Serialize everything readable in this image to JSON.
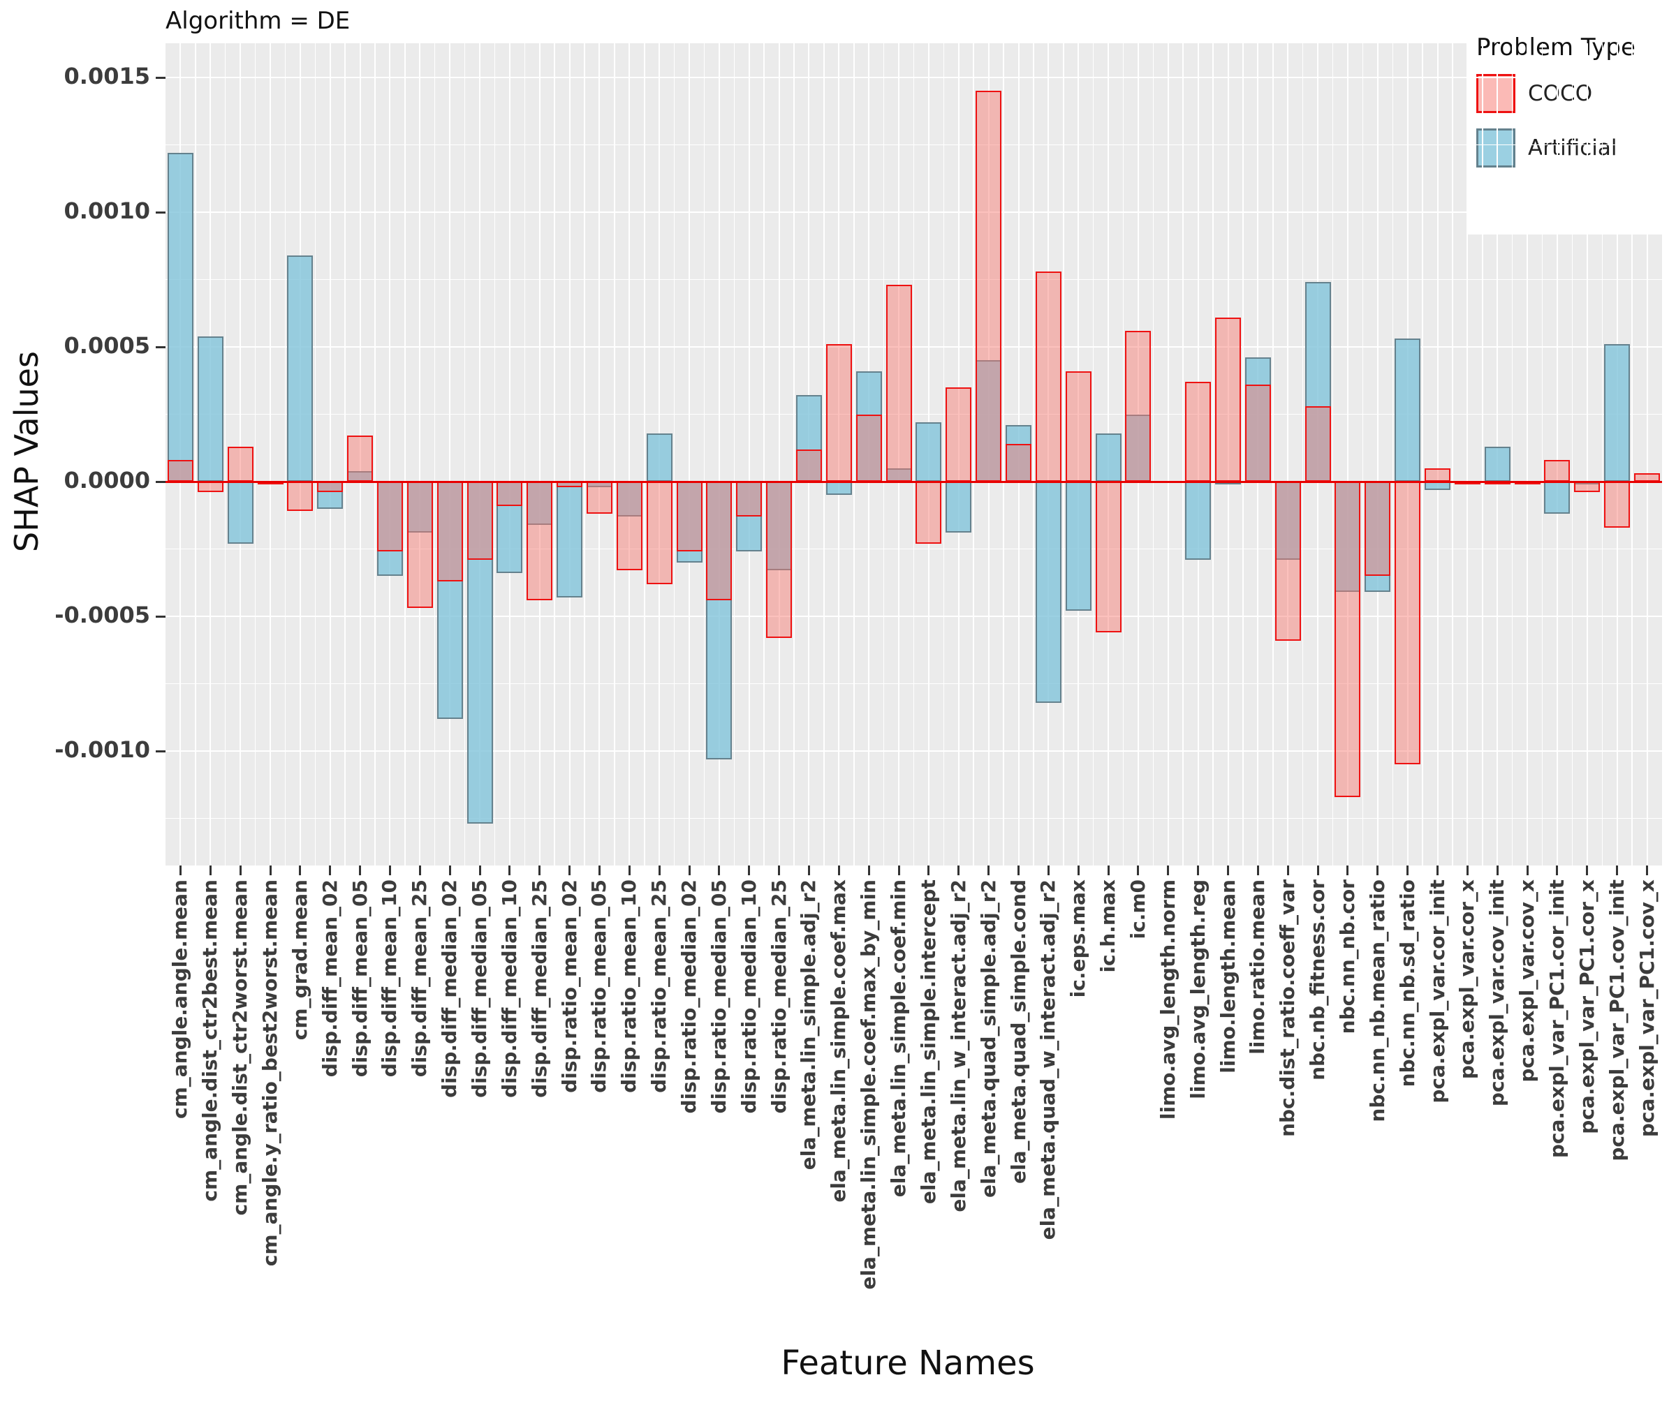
{
  "title": "Algorithm = DE",
  "chart_data": {
    "type": "bar",
    "title": "Algorithm = DE",
    "xlabel": "Feature Names",
    "ylabel": "SHAP Values",
    "ylim": [
      -0.00138,
      0.00163
    ],
    "grid": true,
    "legend_title": "Problem Type",
    "legend_position": "top-right",
    "zero_line_color": "#E80000",
    "panel_background": "#EBEBEB",
    "ytick_values": [
      0.0015,
      0.001,
      0.0005,
      0.0,
      -0.0005,
      -0.001
    ],
    "ytick_labels": [
      "0.0015",
      "0.0010",
      "0.0005",
      "0.0000",
      "-0.0005",
      "-0.0010"
    ],
    "minor_ytick_values": [
      0.00125,
      0.00075,
      0.00025,
      -0.00025,
      -0.00075,
      -0.00125
    ],
    "categories": [
      "cm_angle.angle.mean",
      "cm_angle.dist_ctr2best.mean",
      "cm_angle.dist_ctr2worst.mean",
      "cm_angle.y_ratio_best2worst.mean",
      "cm_grad.mean",
      "disp.diff_mean_02",
      "disp.diff_mean_05",
      "disp.diff_mean_10",
      "disp.diff_mean_25",
      "disp.diff_median_02",
      "disp.diff_median_05",
      "disp.diff_median_10",
      "disp.diff_median_25",
      "disp.ratio_mean_02",
      "disp.ratio_mean_05",
      "disp.ratio_mean_10",
      "disp.ratio_mean_25",
      "disp.ratio_median_02",
      "disp.ratio_median_05",
      "disp.ratio_median_10",
      "disp.ratio_median_25",
      "ela_meta.lin_simple.adj_r2",
      "ela_meta.lin_simple.coef.max",
      "ela_meta.lin_simple.coef.max_by_min",
      "ela_meta.lin_simple.coef.min",
      "ela_meta.lin_simple.intercept",
      "ela_meta.lin_w_interact.adj_r2",
      "ela_meta.quad_simple.adj_r2",
      "ela_meta.quad_simple.cond",
      "ela_meta.quad_w_interact.adj_r2",
      "ic.eps.max",
      "ic.h.max",
      "ic.m0",
      "limo.avg_length.norm",
      "limo.avg_length.reg",
      "limo.length.mean",
      "limo.ratio.mean",
      "nbc.dist_ratio.coeff_var",
      "nbc.nb_fitness.cor",
      "nbc.nn_nb.cor",
      "nbc.nn_nb.mean_ratio",
      "nbc.nn_nb.sd_ratio",
      "pca.expl_var.cor_init",
      "pca.expl_var.cor_x",
      "pca.expl_var.cov_init",
      "pca.expl_var.cov_x",
      "pca.expl_var_PC1.cor_init",
      "pca.expl_var_PC1.cor_x",
      "pca.expl_var_PC1.cov_init",
      "pca.expl_var_PC1.cov_x"
    ],
    "series": [
      {
        "name": "Artificial",
        "color_fill": "rgba(130,196,219,0.80)",
        "color_border": "#64818D",
        "values": [
          0.00122,
          0.00054,
          -0.00023,
          0.0,
          0.00084,
          -0.0001,
          4e-05,
          -0.00035,
          -0.00019,
          -0.00088,
          -0.00127,
          -0.00034,
          -0.00016,
          -0.00043,
          -2e-05,
          -0.00013,
          0.00018,
          -0.0003,
          -0.00103,
          -0.00026,
          -0.00033,
          0.00032,
          -5e-05,
          0.00041,
          5e-05,
          0.00022,
          -0.00019,
          0.00045,
          0.00021,
          -0.00082,
          -0.00048,
          0.00018,
          0.00025,
          0.0,
          -0.00029,
          -1e-05,
          0.00046,
          -0.00029,
          0.00074,
          -0.00041,
          -0.00041,
          0.00053,
          -3e-05,
          0.0,
          0.00013,
          0.0,
          -0.00012,
          -1e-05,
          0.00051,
          0.0
        ]
      },
      {
        "name": "COCO",
        "color_fill": "rgba(248,118,109,0.45)",
        "color_border": "#EE1111",
        "values": [
          8e-05,
          -4e-05,
          0.00013,
          -1e-05,
          -0.00011,
          -4e-05,
          0.00017,
          -0.00026,
          -0.00047,
          -0.00037,
          -0.00029,
          -9e-05,
          -0.00044,
          -2e-05,
          -0.00012,
          -0.00033,
          -0.00038,
          -0.00026,
          -0.00044,
          -0.00013,
          -0.00058,
          0.00012,
          0.00051,
          0.00025,
          0.00073,
          -0.00023,
          0.00035,
          0.00145,
          0.00014,
          0.00078,
          0.00041,
          -0.00056,
          0.00056,
          0.0,
          0.00037,
          0.00061,
          0.00036,
          -0.00059,
          0.00028,
          -0.00117,
          -0.00035,
          -0.00105,
          5e-05,
          -1e-05,
          -1e-05,
          -1e-05,
          8e-05,
          -4e-05,
          -0.00017,
          3e-05
        ]
      }
    ],
    "legend_items": [
      {
        "label": "COCO"
      },
      {
        "label": "Artificial"
      }
    ]
  }
}
